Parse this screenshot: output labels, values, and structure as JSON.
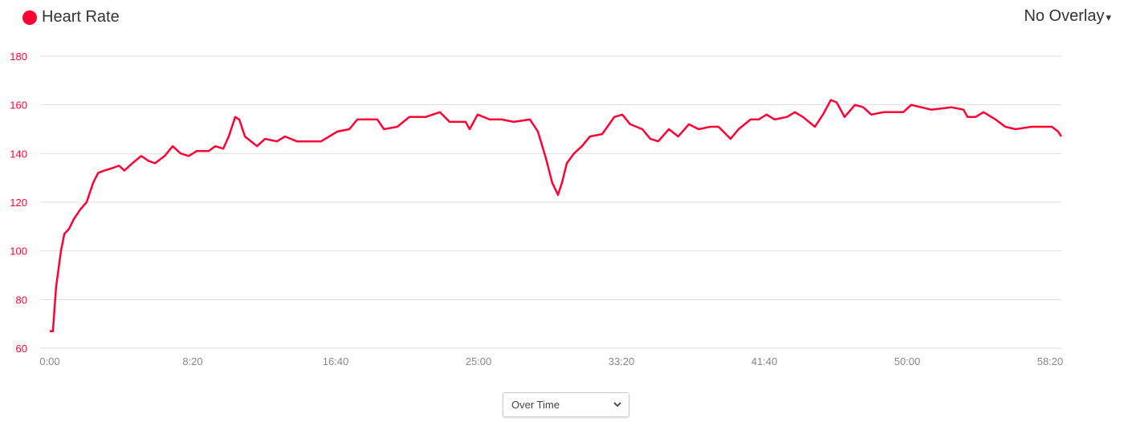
{
  "header": {
    "title": "Heart Rate",
    "overlay_label": "No Overlay",
    "caret": "▾"
  },
  "colors": {
    "series": "#ff0033",
    "grid": "#e0e0e0",
    "ytick": "#ff0033",
    "xtick": "#888888"
  },
  "footer": {
    "mode_select": "Over Time"
  },
  "chart_data": {
    "type": "line",
    "title": "Heart Rate",
    "xlabel": "",
    "ylabel": "",
    "ylim": [
      60,
      180
    ],
    "xlim": [
      0,
      3540
    ],
    "yticks": [
      60,
      80,
      100,
      120,
      140,
      160,
      180
    ],
    "xticks": [
      {
        "v": 0,
        "label": "0:00"
      },
      {
        "v": 500,
        "label": "8:20"
      },
      {
        "v": 1000,
        "label": "16:40"
      },
      {
        "v": 1500,
        "label": "25:00"
      },
      {
        "v": 2000,
        "label": "33:20"
      },
      {
        "v": 2500,
        "label": "41:40"
      },
      {
        "v": 3000,
        "label": "50:00"
      },
      {
        "v": 3500,
        "label": "58:20"
      }
    ],
    "grid": true,
    "x_unit": "seconds",
    "points": [
      [
        0,
        67
      ],
      [
        11,
        67
      ],
      [
        22,
        85
      ],
      [
        39,
        100
      ],
      [
        51,
        107
      ],
      [
        67,
        109
      ],
      [
        84,
        113
      ],
      [
        107,
        117
      ],
      [
        129,
        120
      ],
      [
        152,
        128
      ],
      [
        169,
        132
      ],
      [
        191,
        133
      ],
      [
        219,
        134
      ],
      [
        242,
        135
      ],
      [
        261,
        133
      ],
      [
        289,
        136
      ],
      [
        320,
        139
      ],
      [
        345,
        137
      ],
      [
        368,
        136
      ],
      [
        402,
        139
      ],
      [
        430,
        143
      ],
      [
        458,
        140
      ],
      [
        486,
        139
      ],
      [
        514,
        141
      ],
      [
        556,
        141
      ],
      [
        579,
        143
      ],
      [
        607,
        142
      ],
      [
        626,
        147
      ],
      [
        649,
        155
      ],
      [
        663,
        154
      ],
      [
        683,
        147
      ],
      [
        725,
        143
      ],
      [
        753,
        146
      ],
      [
        795,
        145
      ],
      [
        823,
        147
      ],
      [
        865,
        145
      ],
      [
        949,
        145
      ],
      [
        978,
        147
      ],
      [
        1006,
        149
      ],
      [
        1048,
        150
      ],
      [
        1076,
        154
      ],
      [
        1146,
        154
      ],
      [
        1169,
        150
      ],
      [
        1216,
        151
      ],
      [
        1258,
        155
      ],
      [
        1315,
        155
      ],
      [
        1365,
        157
      ],
      [
        1399,
        153
      ],
      [
        1455,
        153
      ],
      [
        1469,
        150
      ],
      [
        1497,
        156
      ],
      [
        1539,
        154
      ],
      [
        1581,
        154
      ],
      [
        1624,
        153
      ],
      [
        1680,
        154
      ],
      [
        1708,
        149
      ],
      [
        1736,
        138
      ],
      [
        1758,
        128
      ],
      [
        1778,
        123
      ],
      [
        1792,
        128
      ],
      [
        1809,
        136
      ],
      [
        1834,
        140
      ],
      [
        1862,
        143
      ],
      [
        1890,
        147
      ],
      [
        1933,
        148
      ],
      [
        1975,
        155
      ],
      [
        2003,
        156
      ],
      [
        2031,
        152
      ],
      [
        2073,
        150
      ],
      [
        2101,
        146
      ],
      [
        2129,
        145
      ],
      [
        2166,
        150
      ],
      [
        2199,
        147
      ],
      [
        2236,
        152
      ],
      [
        2270,
        150
      ],
      [
        2312,
        151
      ],
      [
        2340,
        151
      ],
      [
        2382,
        146
      ],
      [
        2410,
        150
      ],
      [
        2452,
        154
      ],
      [
        2480,
        154
      ],
      [
        2508,
        156
      ],
      [
        2536,
        154
      ],
      [
        2579,
        155
      ],
      [
        2607,
        157
      ],
      [
        2635,
        155
      ],
      [
        2677,
        151
      ],
      [
        2705,
        156
      ],
      [
        2733,
        162
      ],
      [
        2753,
        161
      ],
      [
        2781,
        155
      ],
      [
        2817,
        160
      ],
      [
        2846,
        159
      ],
      [
        2874,
        156
      ],
      [
        2916,
        157
      ],
      [
        2986,
        157
      ],
      [
        3014,
        160
      ],
      [
        3084,
        158
      ],
      [
        3154,
        159
      ],
      [
        3197,
        158
      ],
      [
        3211,
        155
      ],
      [
        3239,
        155
      ],
      [
        3267,
        157
      ],
      [
        3309,
        154
      ],
      [
        3343,
        151
      ],
      [
        3379,
        150
      ],
      [
        3435,
        151
      ],
      [
        3506,
        151
      ],
      [
        3528,
        149
      ],
      [
        3539,
        147
      ]
    ]
  }
}
